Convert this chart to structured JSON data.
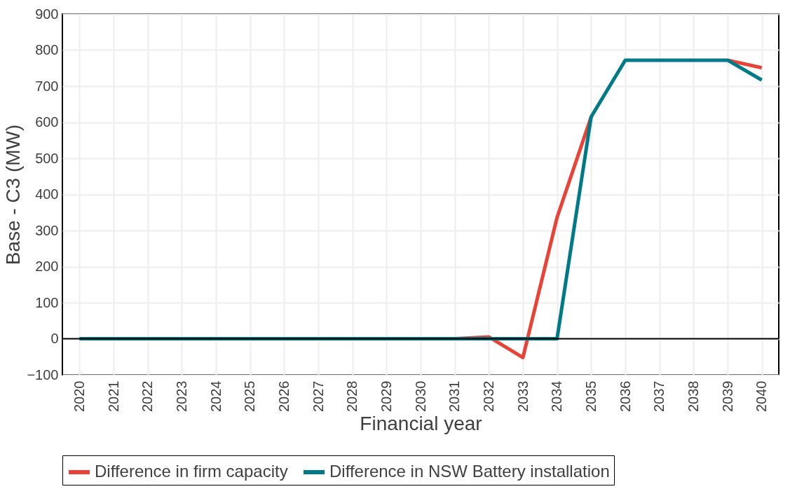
{
  "chart_data": {
    "type": "line",
    "xlabel": "Financial year",
    "ylabel": "Base - C3 (MW)",
    "categories": [
      "2020",
      "2021",
      "2022",
      "2023",
      "2024",
      "2025",
      "2026",
      "2027",
      "2028",
      "2029",
      "2030",
      "2031",
      "2032",
      "2033",
      "2034",
      "2035",
      "2036",
      "2037",
      "2038",
      "2039",
      "2040"
    ],
    "series": [
      {
        "name": "Difference in firm capacity",
        "color": "#e84336",
        "values": [
          null,
          null,
          null,
          null,
          null,
          null,
          null,
          null,
          null,
          null,
          null,
          0,
          5,
          -52,
          336,
          615,
          null,
          null,
          null,
          772,
          751
        ]
      },
      {
        "name": "Difference in NSW Battery installation",
        "color": "#007a87",
        "values": [
          0,
          0,
          0,
          0,
          0,
          0,
          0,
          0,
          0,
          0,
          0,
          0,
          0,
          0,
          0,
          615,
          772,
          772,
          772,
          772,
          717
        ]
      }
    ],
    "ylim": [
      -100,
      900
    ],
    "yticks": [
      -100,
      0,
      100,
      200,
      300,
      400,
      500,
      600,
      700,
      800,
      900
    ],
    "ref_lines": [
      {
        "axis": "y",
        "value": 0,
        "color": "#000000"
      }
    ],
    "grid": true,
    "legend": "bottom",
    "marker": "none",
    "line_style": "solid"
  }
}
